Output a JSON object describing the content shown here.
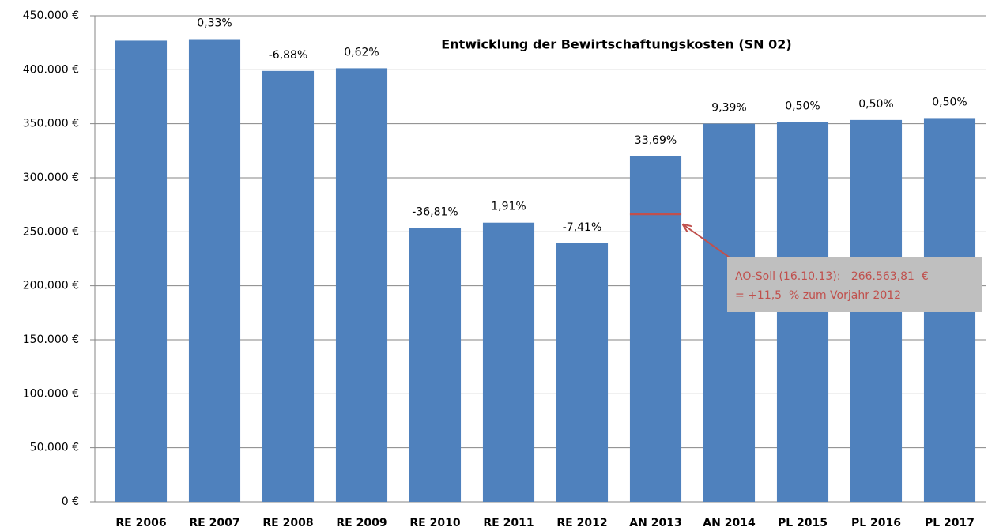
{
  "chart_data": {
    "type": "bar",
    "title": "Entwicklung der Bewirtschaftungskosten (SN 02)",
    "categories": [
      "RE 2006",
      "RE 2007",
      "RE 2008",
      "RE 2009",
      "RE 2010",
      "RE 2011",
      "RE 2012",
      "AN 2013",
      "AN 2014",
      "PL 2015",
      "PL 2016",
      "PL 2017"
    ],
    "values": [
      427000,
      428400,
      398900,
      401400,
      253600,
      258500,
      239300,
      319900,
      350000,
      351700,
      353500,
      355300
    ],
    "change_labels": [
      null,
      "0,33%",
      "-6,88%",
      "0,62%",
      "-36,81%",
      "1,91%",
      "-7,41%",
      "33,69%",
      "9,39%",
      "0,50%",
      "0,50%",
      "0,50%"
    ],
    "color": "#4f81bd",
    "ylim": [
      0,
      450000
    ],
    "yticks": [
      {
        "value": 0,
        "label": "0 €"
      },
      {
        "value": 50000,
        "label": "50.000  €"
      },
      {
        "value": 100000,
        "label": "100.000  €"
      },
      {
        "value": 150000,
        "label": "150.000  €"
      },
      {
        "value": 200000,
        "label": "200.000  €"
      },
      {
        "value": 250000,
        "label": "250.000  €"
      },
      {
        "value": 300000,
        "label": "300.000  €"
      },
      {
        "value": 350000,
        "label": "350.000  €"
      },
      {
        "value": 400000,
        "label": "400.000  €"
      },
      {
        "value": 450000,
        "label": "450.000  €"
      }
    ],
    "grid": true,
    "reference": {
      "category": "AN 2013",
      "value": 266563.81,
      "color": "#c0504d",
      "label_lines": [
        "AO-Soll (16.10.13):   266.563,81  €",
        "= +11,5  % zum Vorjahr 2012"
      ]
    }
  }
}
